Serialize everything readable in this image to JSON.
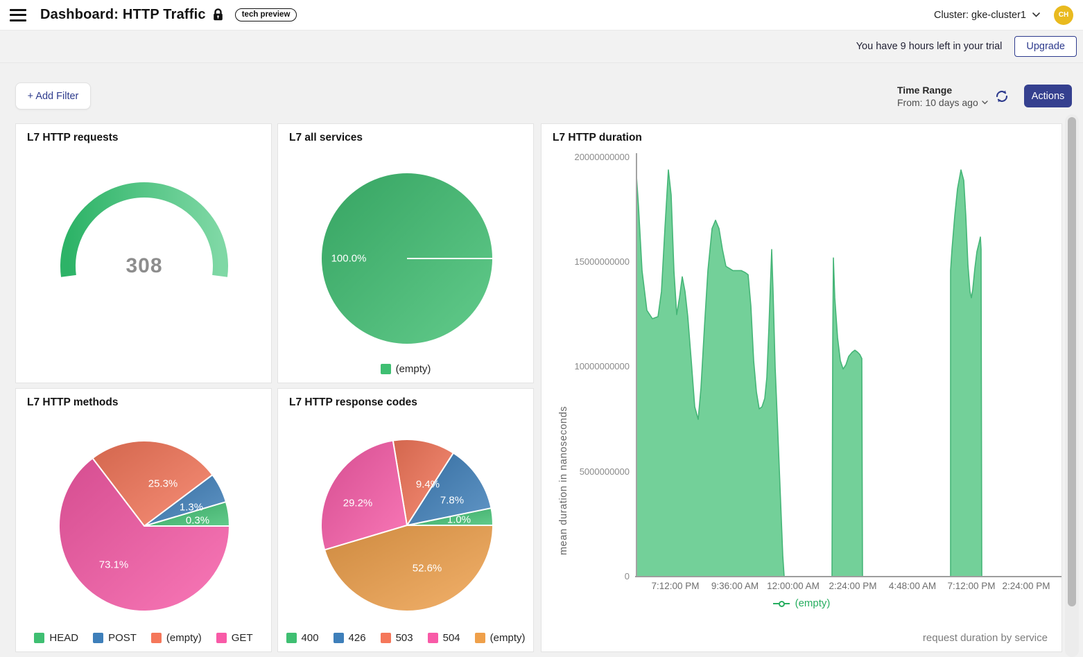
{
  "header": {
    "title": "Dashboard: HTTP Traffic",
    "badge": "tech preview",
    "cluster_label": "Cluster: gke-cluster1",
    "avatar_initials": "CH"
  },
  "trial": {
    "message": "You have 9 hours left in your trial",
    "upgrade_label": "Upgrade"
  },
  "toolbar": {
    "add_filter_label": "+ Add Filter",
    "time_range_label": "Time Range",
    "time_range_value": "From: 10 days ago",
    "actions_label": "Actions"
  },
  "colors": {
    "accent_indigo": "#2e3b8d",
    "actions_bg": "#35408f",
    "avatar_gold": "#e9ba1f",
    "area_fill": "#73d099",
    "area_stroke": "#45b577",
    "legend_green": "#27ae60",
    "pie_green": "#3fbf72",
    "pie_blue": "#3e7fba",
    "pie_salmon": "#f5775a",
    "pie_pink": "#f85aa7",
    "pie_orange": "#efa04a"
  },
  "chart_data": [
    {
      "id": "requests",
      "type": "gauge",
      "title": "L7 HTTP requests",
      "value": 308,
      "color_start": "#2db367",
      "color_end": "#7fd8a5"
    },
    {
      "id": "all_services",
      "type": "pie",
      "title": "L7 all services",
      "slices": [
        {
          "label": "(empty)",
          "value_pct": 100.0,
          "pct_label": "100.0%",
          "deg": 360,
          "color": "#3fbf72",
          "label_pos": [
            102,
            194
          ]
        }
      ]
    },
    {
      "id": "duration",
      "type": "area",
      "title": "L7 HTTP duration",
      "ylabel": "mean duration in nanoseconds",
      "footer": "request duration by service",
      "series_name": "(empty)",
      "series_color": "#27ae60",
      "ylim": [
        0,
        20000000000
      ],
      "yticks": [
        "20000000000",
        "15000000000",
        "10000000000",
        "5000000000",
        "0"
      ],
      "xticks": [
        "7:12:00 PM",
        "9:36:00 AM",
        "12:00:00 AM",
        "2:24:00 PM",
        "4:48:00 AM",
        "7:12:00 PM",
        "2:24:00 PM"
      ],
      "unit": "nanoseconds x1e9",
      "segments": [
        [
          [
            137,
            19.1
          ],
          [
            140,
            17.6
          ],
          [
            145,
            14.6
          ],
          [
            152,
            12.7
          ],
          [
            160,
            12.3
          ],
          [
            168,
            12.4
          ],
          [
            173,
            13.6
          ],
          [
            178,
            16.6
          ],
          [
            183,
            19.4
          ],
          [
            187,
            18.2
          ],
          [
            191,
            14.6
          ],
          [
            195,
            12.5
          ],
          [
            199,
            13.3
          ],
          [
            203,
            14.3
          ],
          [
            207,
            13.6
          ],
          [
            211,
            12.4
          ],
          [
            216,
            10.3
          ],
          [
            221,
            8.1
          ],
          [
            226,
            7.5
          ],
          [
            230,
            9.0
          ],
          [
            235,
            11.9
          ],
          [
            240,
            14.6
          ],
          [
            246,
            16.6
          ],
          [
            251,
            17.0
          ],
          [
            256,
            16.6
          ],
          [
            261,
            15.6
          ],
          [
            266,
            14.8
          ],
          [
            271,
            14.7
          ],
          [
            276,
            14.6
          ],
          [
            282,
            14.6
          ],
          [
            288,
            14.6
          ],
          [
            294,
            14.5
          ],
          [
            298,
            14.4
          ],
          [
            302,
            12.9
          ],
          [
            306,
            10.3
          ],
          [
            310,
            8.8
          ],
          [
            314,
            8.0
          ],
          [
            318,
            8.1
          ],
          [
            322,
            8.5
          ],
          [
            325,
            9.5
          ],
          [
            328,
            11.9
          ],
          [
            332,
            15.6
          ],
          [
            334,
            13.6
          ],
          [
            337,
            10.0
          ],
          [
            340,
            7.6
          ],
          [
            344,
            4.3
          ],
          [
            348,
            1.0
          ],
          [
            350,
            0
          ]
        ],
        [
          [
            419,
            0
          ],
          [
            420,
            10.9
          ],
          [
            421,
            15.2
          ],
          [
            423,
            13.3
          ],
          [
            427,
            11.4
          ],
          [
            431,
            10.3
          ],
          [
            435,
            9.9
          ],
          [
            439,
            10.1
          ],
          [
            443,
            10.5
          ],
          [
            448,
            10.7
          ],
          [
            452,
            10.8
          ],
          [
            456,
            10.7
          ],
          [
            459,
            10.6
          ],
          [
            462,
            10.4
          ],
          [
            463,
            0
          ]
        ],
        [
          [
            590,
            0
          ],
          [
            590,
            14.6
          ],
          [
            592,
            15.6
          ],
          [
            596,
            17.2
          ],
          [
            600,
            18.5
          ],
          [
            605,
            19.4
          ],
          [
            609,
            18.9
          ],
          [
            612,
            17.2
          ],
          [
            615,
            14.9
          ],
          [
            618,
            13.6
          ],
          [
            620,
            13.3
          ],
          [
            622,
            13.7
          ],
          [
            625,
            14.7
          ],
          [
            628,
            15.5
          ],
          [
            631,
            15.9
          ],
          [
            633,
            16.2
          ],
          [
            634,
            15.6
          ],
          [
            635,
            0
          ]
        ]
      ]
    },
    {
      "id": "methods",
      "type": "pie",
      "title": "L7 HTTP methods",
      "slices": [
        {
          "label": "HEAD",
          "value_pct": 0.3,
          "pct_label": "0.3%",
          "deg": 16.5,
          "color": "#3fbf72",
          "label_pos": [
            262,
            190
          ]
        },
        {
          "label": "POST",
          "value_pct": 1.3,
          "pct_label": "1.3%",
          "deg": 20.4,
          "color": "#3e7fba",
          "label_pos": [
            253,
            171
          ]
        },
        {
          "label": "(empty)",
          "value_pct": 25.3,
          "pct_label": "25.3%",
          "deg": 90.4,
          "color": "#f5775a",
          "label_pos": [
            212,
            137
          ]
        },
        {
          "label": "GET",
          "value_pct": 73.1,
          "pct_label": "73.1%",
          "deg": 232.7,
          "color": "#f85aa7",
          "label_pos": [
            141,
            254
          ]
        }
      ]
    },
    {
      "id": "codes",
      "type": "pie",
      "title": "L7 HTTP response codes",
      "slices": [
        {
          "label": "400",
          "value_pct": 1.0,
          "pct_label": "1.0%",
          "deg": 11.6,
          "color": "#3fbf72",
          "label_pos": [
            261,
            189
          ]
        },
        {
          "label": "426",
          "value_pct": 7.8,
          "pct_label": "7.8%",
          "deg": 45.8,
          "color": "#3e7fba",
          "label_pos": [
            251,
            161
          ]
        },
        {
          "label": "503",
          "value_pct": 9.4,
          "pct_label": "9.4%",
          "deg": 42.0,
          "color": "#f5775a",
          "label_pos": [
            216,
            138
          ]
        },
        {
          "label": "504",
          "value_pct": 29.2,
          "pct_label": "29.2%",
          "deg": 97.2,
          "color": "#f85aa7",
          "label_pos": [
            115,
            165
          ]
        },
        {
          "label": "(empty)",
          "value_pct": 52.6,
          "pct_label": "52.6%",
          "deg": 163.4,
          "color": "#efa04a",
          "label_pos": [
            215,
            259
          ]
        }
      ]
    }
  ]
}
